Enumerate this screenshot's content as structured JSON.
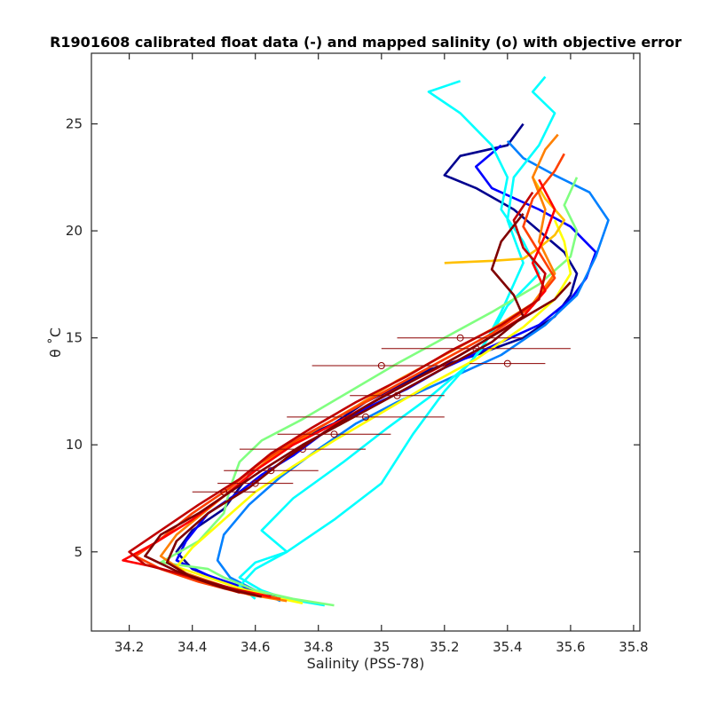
{
  "chart_data": {
    "type": "line",
    "title": "R1901608 calibrated float data (-) and mapped salinity (o) with objective error",
    "xlabel": "Salinity (PSS-78)",
    "ylabel": "θ ˚C",
    "xlim": [
      34.08,
      35.82
    ],
    "ylim": [
      1.3,
      28.3
    ],
    "xticks": [
      "34.2",
      "34.4",
      "34.6",
      "34.8",
      "35",
      "35.2",
      "35.4",
      "35.6",
      "35.8"
    ],
    "yticks": [
      "5",
      "10",
      "15",
      "20",
      "25"
    ],
    "grid": false,
    "colormap": [
      "#00008f",
      "#0000ff",
      "#0080ff",
      "#00ffff",
      "#80ff80",
      "#ffff00",
      "#ff8000",
      "#ff0000",
      "#800000"
    ],
    "series": [
      {
        "color": "#00008f",
        "x": [
          34.7,
          34.6,
          34.5,
          34.4,
          34.35,
          34.4,
          34.5,
          34.55,
          34.6,
          34.7,
          34.85,
          34.95,
          35.05,
          35.15,
          35.3,
          35.45,
          35.55,
          35.6,
          35.62,
          35.58,
          35.5,
          35.42,
          35.3,
          35.2,
          35.25,
          35.4,
          35.45
        ],
        "y": [
          2.8,
          3.2,
          3.6,
          4.2,
          5.0,
          6.0,
          7.0,
          8.0,
          9.0,
          10.0,
          11.0,
          12.0,
          12.7,
          13.5,
          14.2,
          15.0,
          16.0,
          17.0,
          18.0,
          19.0,
          20.0,
          21.0,
          22.0,
          22.6,
          23.5,
          24.0,
          25.0
        ]
      },
      {
        "color": "#0000ff",
        "x": [
          34.65,
          34.55,
          34.45,
          34.35,
          34.38,
          34.45,
          34.55,
          34.62,
          34.72,
          34.82,
          34.95,
          35.08,
          35.2,
          35.35,
          35.5,
          35.6,
          35.65,
          35.68,
          35.6,
          35.5,
          35.35,
          35.3,
          35.38
        ],
        "y": [
          2.9,
          3.4,
          3.9,
          4.6,
          5.5,
          6.8,
          7.8,
          8.6,
          9.5,
          10.6,
          11.7,
          12.6,
          13.6,
          14.6,
          15.6,
          16.8,
          17.8,
          19.0,
          20.2,
          21.0,
          22.0,
          23.0,
          24.0
        ]
      },
      {
        "color": "#0080ff",
        "x": [
          34.68,
          34.6,
          34.52,
          34.48,
          34.5,
          34.58,
          34.68,
          34.8,
          34.92,
          35.05,
          35.2,
          35.38,
          35.52,
          35.62,
          35.68,
          35.72,
          35.66,
          35.55,
          35.45,
          35.4
        ],
        "y": [
          2.7,
          3.2,
          3.8,
          4.6,
          5.8,
          7.2,
          8.5,
          9.8,
          11.0,
          12.0,
          13.0,
          14.2,
          15.6,
          17.0,
          18.8,
          20.5,
          21.8,
          22.6,
          23.4,
          24.2
        ]
      },
      {
        "color": "#00ffff",
        "x": [
          34.82,
          34.7,
          34.62,
          34.55,
          34.6,
          34.7,
          34.62,
          34.72,
          34.88,
          35.02,
          35.15,
          35.28,
          35.35,
          35.4,
          35.5,
          35.45,
          35.38,
          35.4,
          35.35,
          35.25,
          35.15,
          35.25
        ],
        "y": [
          2.5,
          2.8,
          3.2,
          3.8,
          4.5,
          5.0,
          6.0,
          7.5,
          9.2,
          10.8,
          12.2,
          13.8,
          15.2,
          16.5,
          18.0,
          19.5,
          21.0,
          22.5,
          24.0,
          25.5,
          26.5,
          27.0
        ]
      },
      {
        "color": "#00ffff",
        "x": [
          34.6,
          34.55,
          34.6,
          34.7,
          34.85,
          35.0,
          35.1,
          35.2,
          35.32,
          35.38,
          35.45,
          35.4,
          35.42,
          35.5,
          35.55,
          35.48,
          35.52
        ],
        "y": [
          2.8,
          3.4,
          4.2,
          5.0,
          6.5,
          8.2,
          10.5,
          12.5,
          14.5,
          16.2,
          18.5,
          20.5,
          22.5,
          24.0,
          25.5,
          26.5,
          27.2
        ]
      },
      {
        "color": "#80ff80",
        "x": [
          34.85,
          34.72,
          34.6,
          34.5,
          34.45,
          34.3,
          34.42,
          34.5,
          34.52,
          34.55,
          34.62,
          34.75,
          34.9,
          35.05,
          35.2,
          35.35,
          35.5,
          35.6,
          35.62,
          35.58,
          35.62
        ],
        "y": [
          2.5,
          2.8,
          3.2,
          3.8,
          4.2,
          4.5,
          5.5,
          6.8,
          8.0,
          9.2,
          10.2,
          11.2,
          12.5,
          13.8,
          15.0,
          16.2,
          17.5,
          18.8,
          20.0,
          21.2,
          22.5
        ]
      },
      {
        "color": "#ffff00",
        "x": [
          34.75,
          34.65,
          34.55,
          34.45,
          34.35,
          34.4,
          34.5,
          34.6,
          34.72,
          34.85,
          35.0,
          35.15,
          35.3,
          35.45,
          35.55,
          35.6,
          35.58,
          35.55
        ],
        "y": [
          2.6,
          2.9,
          3.3,
          3.8,
          4.3,
          5.2,
          6.5,
          7.8,
          9.0,
          10.2,
          11.5,
          12.8,
          14.0,
          15.5,
          16.8,
          18.0,
          19.5,
          20.5
        ]
      },
      {
        "color": "#ffc000",
        "x": [
          35.2,
          35.35,
          35.45,
          35.5,
          35.55,
          35.58,
          35.52,
          35.48
        ],
        "y": [
          18.5,
          18.6,
          18.7,
          19.2,
          19.8,
          20.5,
          21.5,
          22.5
        ]
      },
      {
        "color": "#ff8000",
        "x": [
          34.7,
          34.58,
          34.48,
          34.38,
          34.3,
          34.35,
          34.45,
          34.55,
          34.65,
          34.78,
          34.92,
          35.05,
          35.2,
          35.35,
          35.48,
          35.55,
          35.5,
          35.52,
          35.48,
          35.52,
          35.56
        ],
        "y": [
          2.7,
          3.0,
          3.5,
          4.0,
          4.8,
          5.8,
          7.0,
          8.2,
          9.4,
          10.6,
          11.8,
          13.0,
          14.2,
          15.4,
          16.6,
          18.0,
          19.5,
          21.0,
          22.5,
          23.8,
          24.5
        ]
      },
      {
        "color": "#ff4000",
        "x": [
          34.68,
          34.55,
          34.42,
          34.3,
          34.22,
          34.3,
          34.4,
          34.52,
          34.62,
          34.75,
          34.9,
          35.05,
          35.2,
          35.35,
          35.48,
          35.55,
          35.5,
          35.45,
          35.48,
          35.55,
          35.58
        ],
        "y": [
          2.8,
          3.1,
          3.6,
          4.2,
          4.8,
          5.6,
          6.8,
          8.0,
          9.2,
          10.4,
          11.6,
          12.8,
          14.0,
          15.2,
          16.5,
          17.8,
          19.0,
          20.2,
          21.5,
          22.8,
          23.6
        ]
      },
      {
        "color": "#ff0000",
        "x": [
          34.65,
          34.52,
          34.4,
          34.28,
          34.18,
          34.28,
          34.4,
          34.5,
          34.6,
          34.72,
          34.88,
          35.02,
          35.18,
          35.32,
          35.45,
          35.52,
          35.48,
          35.52,
          35.55,
          35.5
        ],
        "y": [
          2.9,
          3.3,
          3.8,
          4.3,
          4.6,
          5.4,
          6.5,
          7.6,
          8.8,
          10.0,
          11.2,
          12.4,
          13.6,
          14.8,
          16.0,
          17.2,
          18.5,
          19.8,
          21.0,
          22.4
        ]
      },
      {
        "color": "#c00000",
        "x": [
          34.6,
          34.5,
          34.38,
          34.25,
          34.2,
          34.3,
          34.42,
          34.55,
          34.65,
          34.78,
          34.92,
          35.08,
          35.22,
          35.38,
          35.5,
          35.52,
          35.45,
          35.42,
          35.48
        ],
        "y": [
          3.0,
          3.4,
          3.9,
          4.4,
          5.0,
          6.0,
          7.2,
          8.4,
          9.6,
          10.8,
          12.0,
          13.2,
          14.4,
          15.6,
          16.8,
          18.0,
          19.2,
          20.5,
          21.8
        ]
      },
      {
        "color": "#800000",
        "x": [
          34.55,
          34.45,
          34.35,
          34.25,
          34.3,
          34.42,
          34.52,
          34.62,
          34.75,
          34.9,
          35.05,
          35.2,
          35.35,
          35.45,
          35.42,
          35.35,
          35.38,
          35.45
        ],
        "y": [
          3.1,
          3.6,
          4.1,
          4.8,
          5.8,
          6.8,
          7.8,
          8.8,
          10.0,
          11.2,
          12.4,
          13.6,
          14.8,
          16.0,
          17.0,
          18.2,
          19.5,
          20.8
        ]
      },
      {
        "color": "#800000",
        "x": [
          34.62,
          34.5,
          34.4,
          34.32,
          34.35,
          34.45,
          34.58,
          34.7,
          34.82,
          34.95,
          35.1,
          35.25,
          35.4,
          35.55,
          35.6
        ],
        "y": [
          2.9,
          3.3,
          3.8,
          4.5,
          5.5,
          6.8,
          8.0,
          9.4,
          10.6,
          11.8,
          13.0,
          14.2,
          15.5,
          16.8,
          17.6
        ]
      }
    ],
    "error_bars": [
      {
        "x": 35.0,
        "y": 13.7,
        "xerr": 0.22
      },
      {
        "x": 35.25,
        "y": 15.0,
        "xerr": 0.2
      },
      {
        "x": 35.3,
        "y": 14.5,
        "xerr": 0.3
      },
      {
        "x": 34.95,
        "y": 11.3,
        "xerr": 0.25
      },
      {
        "x": 34.85,
        "y": 10.5,
        "xerr": 0.18
      },
      {
        "x": 34.75,
        "y": 9.8,
        "xerr": 0.2
      },
      {
        "x": 34.65,
        "y": 8.8,
        "xerr": 0.15
      },
      {
        "x": 34.6,
        "y": 8.2,
        "xerr": 0.12
      },
      {
        "x": 34.5,
        "y": 7.8,
        "xerr": 0.1
      },
      {
        "x": 35.4,
        "y": 13.8,
        "xerr": 0.12
      },
      {
        "x": 35.05,
        "y": 12.3,
        "xerr": 0.15
      }
    ]
  }
}
